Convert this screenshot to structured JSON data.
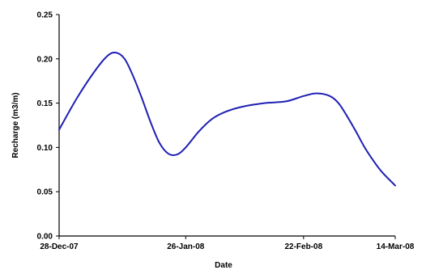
{
  "chart_data": {
    "type": "line",
    "title": "",
    "xlabel": "Date",
    "ylabel": "Recharge (m3/m)",
    "x_ticks": [
      "28-Dec-07",
      "26-Jan-08",
      "22-Feb-08",
      "14-Mar-08"
    ],
    "x_tick_days": [
      0,
      29,
      56,
      77
    ],
    "y_ticks": [
      "0.00",
      "0.05",
      "0.10",
      "0.15",
      "0.20",
      "0.25"
    ],
    "ylim": [
      0,
      0.25
    ],
    "xlim_days": [
      0,
      77
    ],
    "grid": false,
    "legend": "none",
    "series": [
      {
        "color": "#1f1fb4",
        "x_days": [
          0,
          4,
          8,
          11,
          13,
          15,
          17,
          19,
          21,
          23,
          25,
          27,
          29,
          32,
          35,
          38,
          42,
          47,
          52,
          56,
          59,
          62,
          64,
          66,
          68,
          70,
          72,
          74,
          77
        ],
        "values": [
          0.12,
          0.155,
          0.185,
          0.203,
          0.207,
          0.2,
          0.18,
          0.155,
          0.128,
          0.105,
          0.093,
          0.092,
          0.1,
          0.118,
          0.132,
          0.14,
          0.146,
          0.15,
          0.152,
          0.158,
          0.161,
          0.158,
          0.15,
          0.135,
          0.118,
          0.1,
          0.085,
          0.072,
          0.057
        ]
      }
    ]
  }
}
